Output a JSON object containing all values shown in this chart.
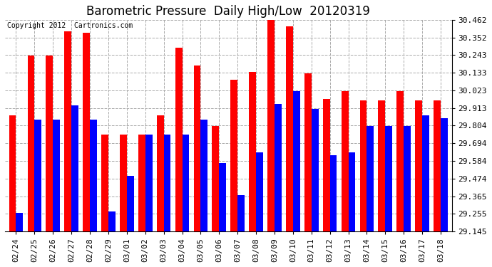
{
  "title": "Barometric Pressure  Daily High/Low  20120319",
  "copyright": "Copyright 2012  Cartronics.com",
  "dates": [
    "02/24",
    "02/25",
    "02/26",
    "02/27",
    "02/28",
    "02/29",
    "03/01",
    "03/02",
    "03/03",
    "03/04",
    "03/05",
    "03/06",
    "03/07",
    "03/08",
    "03/09",
    "03/10",
    "03/11",
    "03/12",
    "03/13",
    "03/14",
    "03/15",
    "03/16",
    "03/17",
    "03/18"
  ],
  "highs": [
    29.87,
    30.24,
    30.24,
    30.39,
    30.38,
    29.75,
    29.75,
    29.75,
    29.87,
    30.29,
    30.18,
    29.8,
    30.09,
    30.14,
    30.46,
    30.42,
    30.13,
    29.97,
    30.02,
    29.96,
    29.96,
    30.02,
    29.96,
    29.96
  ],
  "lows": [
    29.26,
    29.84,
    29.84,
    29.93,
    29.84,
    29.27,
    29.49,
    29.75,
    29.75,
    29.75,
    29.84,
    29.57,
    29.37,
    29.64,
    29.94,
    30.02,
    29.91,
    29.62,
    29.64,
    29.8,
    29.8,
    29.8,
    29.87,
    29.85
  ],
  "ylim_min": 29.145,
  "ylim_max": 30.462,
  "yticks": [
    29.145,
    29.255,
    29.365,
    29.474,
    29.584,
    29.694,
    29.804,
    29.913,
    30.023,
    30.133,
    30.243,
    30.352,
    30.462
  ],
  "ytick_labels": [
    "29.145",
    "29.255",
    "29.365",
    "29.474",
    "29.584",
    "29.694",
    "29.804",
    "29.913",
    "30.023",
    "30.133",
    "30.243",
    "30.352",
    "30.462"
  ],
  "bar_width": 0.38,
  "high_color": "#FF0000",
  "low_color": "#0000FF",
  "bg_color": "#FFFFFF",
  "grid_color": "#AAAAAA",
  "title_fontsize": 12,
  "tick_fontsize": 8,
  "copyright_fontsize": 7
}
